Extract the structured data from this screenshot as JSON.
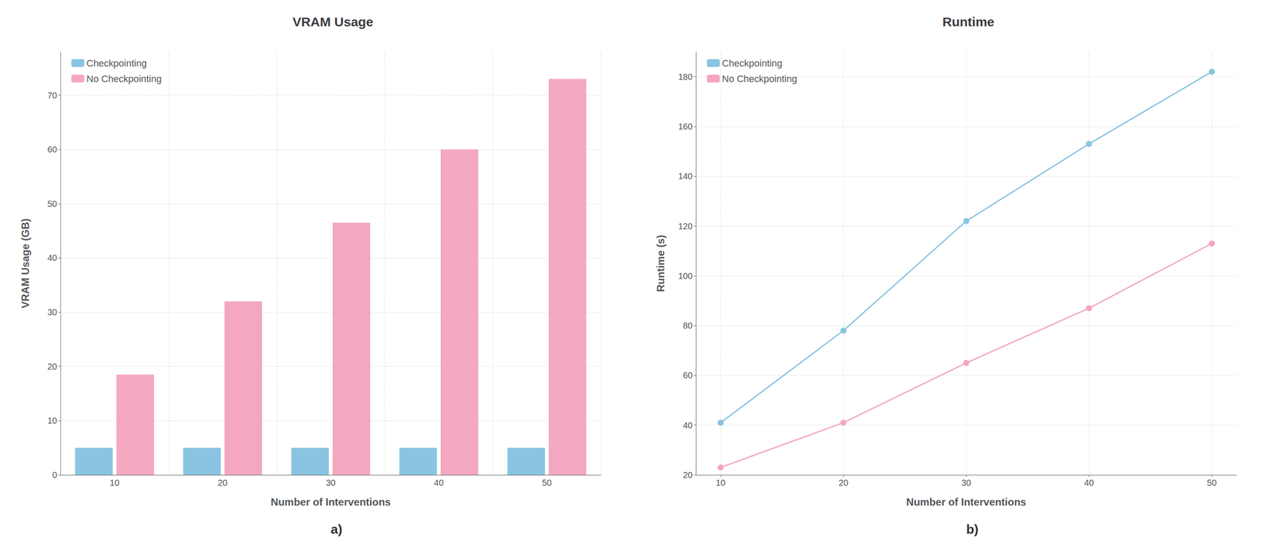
{
  "chart_data": [
    {
      "type": "bar",
      "title": "VRAM Usage",
      "xlabel": "Number of Interventions",
      "ylabel": "VRAM Usage (GB)",
      "annotation": "a)",
      "categories": [
        "10",
        "20",
        "30",
        "40",
        "50"
      ],
      "series": [
        {
          "name": "Checkpointing",
          "color": "#89C4E1",
          "values": [
            5,
            5,
            5,
            5,
            5
          ]
        },
        {
          "name": "No Checkpointing",
          "color": "#F4A7C0",
          "values": [
            18.5,
            32,
            46.5,
            60,
            73
          ]
        }
      ],
      "ylim": [
        0,
        78
      ],
      "yticks": [
        0,
        10,
        20,
        30,
        40,
        50,
        60,
        70
      ],
      "grid": true,
      "legend": "upper left"
    },
    {
      "type": "line",
      "title": "Runtime",
      "xlabel": "Number of Interventions",
      "ylabel": "Runtime (s)",
      "annotation": "b)",
      "x": [
        10,
        20,
        30,
        40,
        50
      ],
      "xlim": [
        8,
        52
      ],
      "xticks": [
        10,
        20,
        30,
        40,
        50
      ],
      "series": [
        {
          "name": "Checkpointing",
          "color": "#89C4E1",
          "values": [
            41,
            78,
            122,
            153,
            182
          ]
        },
        {
          "name": "No Checkpointing",
          "color": "#F4A7C0",
          "values": [
            23,
            41,
            65,
            87,
            113
          ]
        }
      ],
      "ylim": [
        20,
        190
      ],
      "yticks": [
        20,
        40,
        60,
        80,
        100,
        120,
        140,
        160,
        180
      ],
      "grid": true,
      "legend": "upper left",
      "marker": "circle"
    }
  ]
}
